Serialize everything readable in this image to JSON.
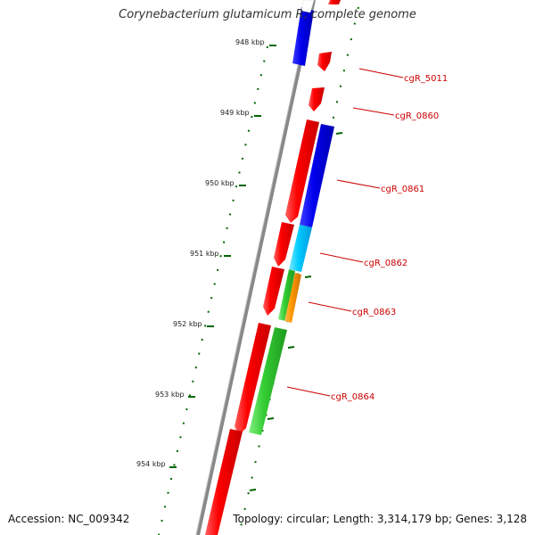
{
  "title": "Corynebacterium glutamicum R, complete genome",
  "footer": {
    "accession": "Accession: NC_009342",
    "summary": "Topology: circular; Length: 3,314,179 bp; Genes: 3,128"
  },
  "scale": {
    "unit": "kbp",
    "ticks": [
      948,
      949,
      950,
      951,
      952,
      953,
      954
    ]
  },
  "colors": {
    "backbone": "#8a8a8a",
    "forward": "#ff0000",
    "reverse_blue": "#0000ee",
    "reverse_cyan": "#00ccff",
    "reverse_green": "#33cc33",
    "reverse_orange": "#ff9900",
    "tick": "#006600",
    "label": "#cc0000"
  },
  "genes": [
    {
      "label": "cgR_5011"
    },
    {
      "label": "cgR_0860"
    },
    {
      "label": "cgR_0861"
    },
    {
      "label": "cgR_0862"
    },
    {
      "label": "cgR_0863"
    },
    {
      "label": "cgR_0864"
    }
  ]
}
